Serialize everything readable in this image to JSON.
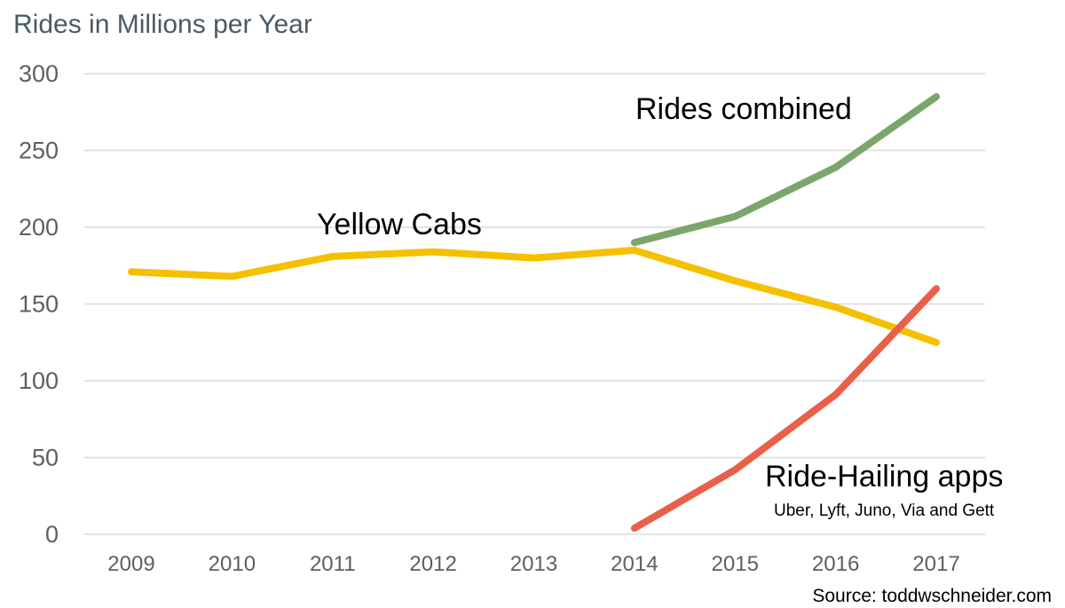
{
  "chart_data": {
    "type": "line",
    "title": "Rides in Millions per Year",
    "xlabel": "",
    "ylabel": "",
    "ylim": [
      0,
      300
    ],
    "yticks": [
      0,
      50,
      100,
      150,
      200,
      250,
      300
    ],
    "categories": [
      "2009",
      "2010",
      "2011",
      "2012",
      "2013",
      "2014",
      "2015",
      "2016",
      "2017"
    ],
    "grid": true,
    "series": [
      {
        "name": "Yellow Cabs",
        "color": "#f5c000",
        "values": [
          171,
          168,
          181,
          184,
          180,
          185,
          165,
          148,
          125
        ]
      },
      {
        "name": "Rides combined",
        "color": "#7ba66b",
        "values": [
          null,
          null,
          null,
          null,
          null,
          190,
          207,
          239,
          285
        ]
      },
      {
        "name": "Ride-Hailing apps",
        "color": "#e8604a",
        "values": [
          null,
          null,
          null,
          null,
          null,
          4,
          42,
          91,
          160
        ]
      }
    ],
    "annotations": {
      "rides_combined": "Rides combined",
      "yellow_cabs": "Yellow Cabs",
      "ride_hailing": "Ride-Hailing apps",
      "ride_hailing_sub": "Uber, Lyft, Juno, Via and Gett"
    },
    "source": "Source: toddwschneider.com"
  }
}
